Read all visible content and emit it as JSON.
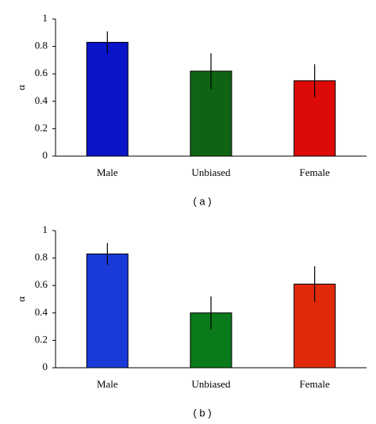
{
  "chart_data": [
    {
      "type": "bar",
      "ylabel": "α",
      "caption": "( a )",
      "categories": [
        "Male",
        "Unbiased",
        "Female"
      ],
      "values": [
        0.83,
        0.62,
        0.55
      ],
      "errors": [
        0.08,
        0.13,
        0.12
      ],
      "colors": [
        "#0a14c8",
        "#0f6414",
        "#dd0a0a"
      ],
      "ylim": [
        0,
        1
      ],
      "yticks": [
        0,
        0.2,
        0.4,
        0.6,
        0.8,
        1
      ]
    },
    {
      "type": "bar",
      "ylabel": "α",
      "caption": "( b )",
      "categories": [
        "Male",
        "Unbiased",
        "Female"
      ],
      "values": [
        0.83,
        0.4,
        0.61
      ],
      "errors": [
        0.08,
        0.12,
        0.13
      ],
      "colors": [
        "#1a3ad8",
        "#0a7a1a",
        "#e02a0a"
      ],
      "ylim": [
        0,
        1
      ],
      "yticks": [
        0,
        0.2,
        0.4,
        0.6,
        0.8,
        1
      ]
    }
  ]
}
